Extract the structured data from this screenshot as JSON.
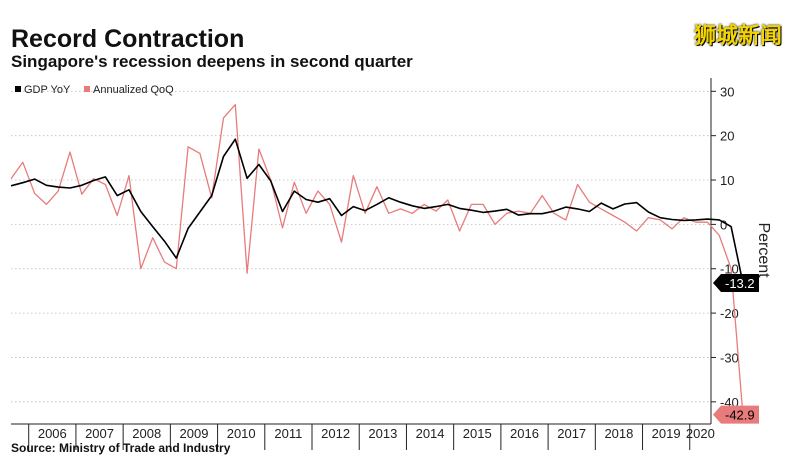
{
  "title": "Record Contraction",
  "subtitle": "Singapore's recession deepens in second quarter",
  "watermark": "狮城新闻",
  "source": "Source: Ministry of Trade and Industry",
  "chart_data": {
    "type": "line",
    "ylabel": "Percent",
    "ylim": [
      -45,
      33
    ],
    "yticks": [
      30,
      20,
      10,
      0,
      -10,
      -20,
      -30,
      -40
    ],
    "years": [
      "2006",
      "2007",
      "2008",
      "2009",
      "2010",
      "2011",
      "2012",
      "2013",
      "2014",
      "2015",
      "2016",
      "2017",
      "2018",
      "2019",
      "2020"
    ],
    "x_start": 2005.625,
    "x_end": 2020.45,
    "legend_position": "top-left",
    "series": [
      {
        "name": "GDP YoY",
        "color": "#000000",
        "end_label": "-13.2",
        "values": [
          8.7,
          9.4,
          10.2,
          8.8,
          8.4,
          8.2,
          8.8,
          9.9,
          10.7,
          6.5,
          7.8,
          2.9,
          -0.5,
          -3.8,
          -7.6,
          -0.9,
          2.8,
          6.5,
          15.3,
          19.2,
          10.4,
          13.5,
          9.8,
          2.9,
          7.5,
          5.6,
          5.0,
          5.8,
          2.0,
          4.0,
          3.1,
          4.5,
          6.0,
          5.0,
          4.2,
          3.6,
          4.0,
          4.5,
          3.6,
          3.2,
          2.7,
          3.0,
          3.4,
          2.1,
          2.4,
          2.4,
          3.0,
          3.9,
          3.5,
          2.9,
          4.8,
          3.5,
          4.6,
          4.9,
          2.8,
          1.5,
          1.1,
          0.9,
          1.0,
          1.2,
          1.0,
          -0.5,
          -13.2
        ]
      },
      {
        "name": "Annualized QoQ",
        "color": "#e87b7b",
        "end_label": "-42.9",
        "values": [
          10.3,
          14.0,
          7.0,
          4.5,
          7.5,
          16.3,
          6.8,
          10.3,
          9.0,
          2.0,
          11.0,
          -10.0,
          -3.0,
          -8.5,
          -10.0,
          17.5,
          16.0,
          6.0,
          24.0,
          27.0,
          -11.0,
          17.0,
          10.0,
          -0.8,
          9.5,
          2.5,
          7.5,
          4.5,
          -4.0,
          11.0,
          2.5,
          8.5,
          2.5,
          3.5,
          2.5,
          4.5,
          3.0,
          5.5,
          -1.5,
          4.5,
          4.5,
          0.0,
          2.5,
          3.0,
          2.5,
          6.5,
          2.5,
          1.0,
          9.0,
          5.0,
          3.5,
          2.0,
          0.5,
          -1.5,
          1.5,
          1.0,
          -1.0,
          1.5,
          0.5,
          0.5,
          -2.5,
          -10.0,
          -42.9
        ]
      }
    ]
  }
}
